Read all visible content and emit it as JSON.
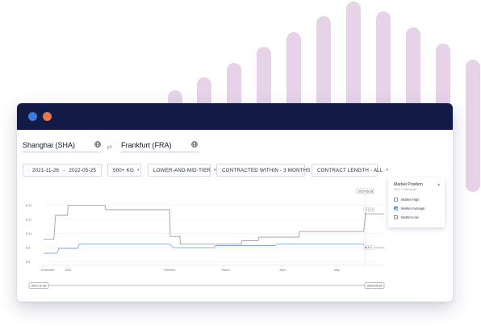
{
  "colors": {
    "titlebar": "#121b45",
    "window_dot_blue": "#3a7be0",
    "window_dot_orange": "#f0764b",
    "accent": "#3b6fd6",
    "bg_bar": "#e6d3e7",
    "line_high": "#9aa0a8",
    "line_average": "#7fa6ec"
  },
  "route": {
    "origin": "Shanghai (SHA)",
    "destination": "Frankfurt (FRA)",
    "origin_icon": "globe-icon",
    "destination_icon": "globe-icon",
    "swap_icon": "swap-arrows-icon"
  },
  "filters": {
    "date_from": "2021-11-26",
    "date_to": "2022-05-25",
    "volume": "500+ KG",
    "tier": "LOWER-AND-MID-TIER",
    "contract": "CONTRACTED WITHIN - 3 MONTHS",
    "contract_length": "CONTRACT LENGTH - ALL"
  },
  "market_position": {
    "title": "Market Position",
    "subtitle": "2021 • Standards",
    "items": [
      {
        "label": "Market High",
        "checked": false
      },
      {
        "label": "Market Average",
        "checked": true
      },
      {
        "label": "Market Low",
        "checked": false
      }
    ]
  },
  "chart_data": {
    "type": "line",
    "y_ticks": [
      "$ 14",
      "$ 12",
      "$ 10",
      "$ 8",
      "$ 6"
    ],
    "ylim": [
      5.5,
      15
    ],
    "x_ticks": [
      "December",
      "2022",
      "February",
      "March",
      "April",
      "May"
    ],
    "x_tick_pos": [
      0.0,
      0.07,
      0.36,
      0.53,
      0.7,
      0.86
    ],
    "grid": true,
    "series": [
      {
        "name": "Market High",
        "x": [
          0.0,
          0.03,
          0.035,
          0.07,
          0.072,
          0.18,
          0.182,
          0.37,
          0.372,
          0.4,
          0.402,
          0.58,
          0.582,
          0.63,
          0.632,
          0.75,
          0.752,
          0.94,
          0.945,
          1.0
        ],
        "values": [
          9.2,
          9.2,
          12.6,
          12.6,
          14.0,
          14.0,
          13.4,
          13.4,
          9.6,
          9.6,
          8.5,
          8.5,
          9.0,
          9.0,
          9.5,
          9.5,
          10.3,
          10.3,
          12.8,
          12.8
        ]
      },
      {
        "name": "Market Average",
        "x": [
          0.0,
          0.04,
          0.045,
          0.1,
          0.105,
          0.37,
          0.38,
          0.5,
          0.505,
          0.68,
          0.685,
          0.94,
          0.945,
          1.0
        ],
        "values": [
          7.2,
          7.2,
          7.9,
          7.9,
          8.5,
          8.5,
          8.0,
          8.0,
          8.3,
          8.3,
          8.5,
          8.5,
          8.0,
          8.0
        ]
      }
    ],
    "annotation_date": "2022-05-18",
    "annotation_values": [
      "$ 12.8",
      "$ 8.0"
    ],
    "range_start": "2021-11-26",
    "range_end": "2022-05-25"
  }
}
